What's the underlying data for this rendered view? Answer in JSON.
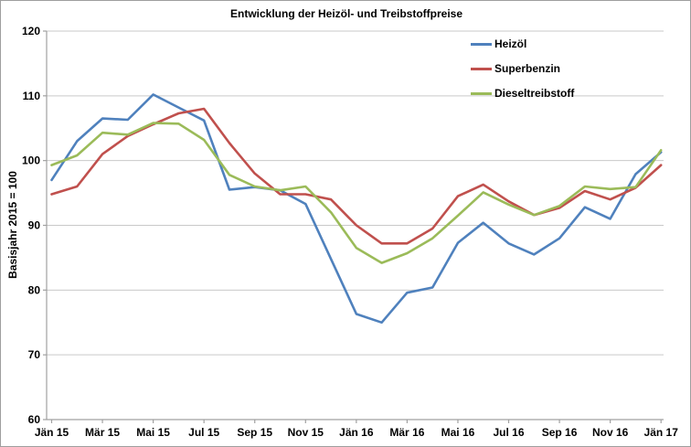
{
  "chart_data": {
    "type": "line",
    "title": "Entwicklung der Heizöl- und Treibstoffpreise",
    "xlabel": "",
    "ylabel": "Basisjahr 2015 = 100",
    "ylim": [
      60,
      120
    ],
    "y_ticks": [
      60,
      70,
      80,
      90,
      100,
      110,
      120
    ],
    "x_tick_labels": [
      "Jän 15",
      "Mär 15",
      "Mai 15",
      "Jul 15",
      "Sep 15",
      "Nov 15",
      "Jän 16",
      "Mär 16",
      "Mai 16",
      "Jul 16",
      "Sep 16",
      "Nov 16",
      "Jän 17"
    ],
    "x_label_step": 2,
    "points_per_series": 25,
    "grid": "horizontal",
    "legend_position": "top-right-inside",
    "axis_color": "#a0a0a0",
    "gridline_color": "#c9c9c9",
    "series": [
      {
        "name": "Heizöl",
        "color": "#4F81BD",
        "values": [
          97,
          103,
          106.5,
          106.3,
          110.2,
          108.2,
          106.2,
          95.5,
          95.9,
          95.4,
          93.3,
          84.8,
          76.3,
          75,
          79.6,
          80.4,
          87.3,
          90.4,
          87.2,
          85.5,
          88,
          92.8,
          91,
          97.9,
          101.3
        ]
      },
      {
        "name": "Superbenzin",
        "color": "#C0504D",
        "values": [
          94.8,
          96,
          101,
          103.8,
          105.6,
          107.3,
          108,
          102.7,
          98,
          94.8,
          94.8,
          94,
          90,
          87.2,
          87.2,
          89.5,
          94.5,
          96.3,
          93.7,
          91.6,
          92.7,
          95.3,
          94,
          95.8,
          99.3
        ]
      },
      {
        "name": "Dieseltreibstoff",
        "color": "#9BBB59",
        "values": [
          99.3,
          100.8,
          104.3,
          104,
          105.8,
          105.7,
          103.2,
          97.8,
          96,
          95.4,
          96,
          92,
          86.5,
          84.2,
          85.7,
          88,
          91.5,
          95.1,
          93.2,
          91.6,
          93,
          96,
          95.6,
          95.9,
          101.6
        ]
      }
    ]
  }
}
